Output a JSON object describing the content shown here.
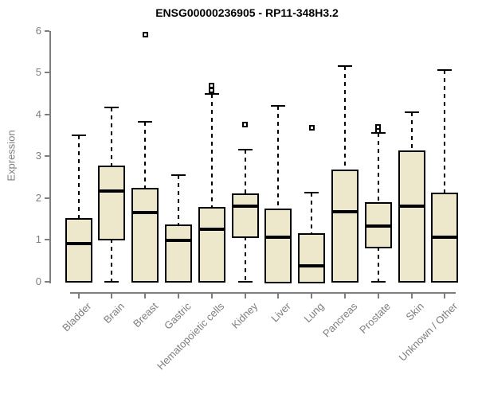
{
  "chart_data": {
    "type": "boxplot",
    "title": "ENSG00000236905 - RP11-348H3.2",
    "ylabel": "Expression",
    "xlabel": "",
    "ylim": [
      0,
      6
    ],
    "yticks": [
      0,
      1,
      2,
      3,
      4,
      5,
      6
    ],
    "grid": false,
    "legend": "none",
    "colors": {
      "box_fill": "#EDE8CC",
      "box_border": "#000000",
      "median": "#000000",
      "axis": "#7E7E7E",
      "tick_label": "#7E7E7E",
      "title": "#000000"
    },
    "categories": [
      "Bladder",
      "Brain",
      "Breast",
      "Gastric",
      "Hematopoietic cells",
      "Kidney",
      "Liver",
      "Lung",
      "Pancreas",
      "Prostate",
      "Skin",
      "Unknown / Other"
    ],
    "boxes": [
      {
        "category": "Bladder",
        "whisker_low": 0,
        "q1": 0,
        "median": 0.9,
        "q3": 1.52,
        "whisker_high": 3.5,
        "outliers": []
      },
      {
        "category": "Brain",
        "whisker_low": 0,
        "q1": 1.02,
        "median": 2.17,
        "q3": 2.78,
        "whisker_high": 4.17,
        "outliers": []
      },
      {
        "category": "Breast",
        "whisker_low": 0,
        "q1": 0,
        "median": 1.65,
        "q3": 2.24,
        "whisker_high": 3.82,
        "outliers": [
          5.9
        ]
      },
      {
        "category": "Gastric",
        "whisker_low": 0,
        "q1": 0,
        "median": 0.99,
        "q3": 1.37,
        "whisker_high": 2.54,
        "outliers": []
      },
      {
        "category": "Hematopoietic cells",
        "whisker_low": 0,
        "q1": 0,
        "median": 1.24,
        "q3": 1.78,
        "whisker_high": 4.48,
        "outliers": [
          4.68,
          4.58
        ]
      },
      {
        "category": "Kidney",
        "whisker_low": 0,
        "q1": 1.08,
        "median": 1.8,
        "q3": 2.1,
        "whisker_high": 3.15,
        "outliers": [
          3.75
        ]
      },
      {
        "category": "Liver",
        "whisker_low": 0,
        "q1": 0,
        "median": 1.05,
        "q3": 1.75,
        "whisker_high": 4.2,
        "outliers": []
      },
      {
        "category": "Lung",
        "whisker_low": 0,
        "q1": 0,
        "median": 0.38,
        "q3": 1.15,
        "whisker_high": 2.13,
        "outliers": [
          3.67
        ]
      },
      {
        "category": "Pancreas",
        "whisker_low": 0,
        "q1": 0,
        "median": 1.67,
        "q3": 2.67,
        "whisker_high": 5.15,
        "outliers": []
      },
      {
        "category": "Prostate",
        "whisker_low": 0,
        "q1": 0.83,
        "median": 1.33,
        "q3": 1.89,
        "whisker_high": 3.55,
        "outliers": [
          3.7,
          3.6
        ]
      },
      {
        "category": "Skin",
        "whisker_low": 0,
        "q1": 0,
        "median": 1.8,
        "q3": 3.13,
        "whisker_high": 4.05,
        "outliers": []
      },
      {
        "category": "Unknown / Other",
        "whisker_low": 0,
        "q1": 0,
        "median": 1.05,
        "q3": 2.12,
        "whisker_high": 5.05,
        "outliers": []
      }
    ]
  }
}
